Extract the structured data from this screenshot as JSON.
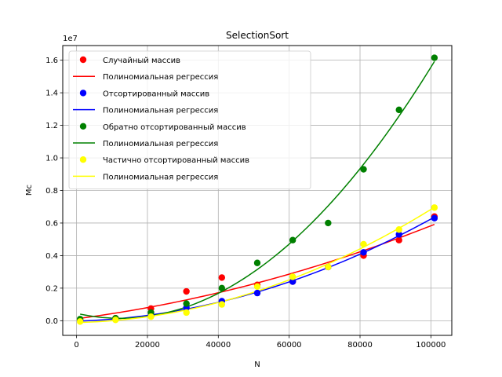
{
  "chart_data": {
    "type": "scatter",
    "title": "SelectionSort",
    "xlabel": "N",
    "ylabel": "Мс",
    "y_offset_text": "1e7",
    "xlim": [
      -3900,
      105900
    ],
    "ylim": [
      -900000,
      16900000
    ],
    "x_ticks": [
      0,
      20000,
      40000,
      60000,
      80000,
      100000
    ],
    "x_tick_labels": [
      "0",
      "20000",
      "40000",
      "60000",
      "80000",
      "100000"
    ],
    "y_ticks": [
      0,
      2000000,
      4000000,
      6000000,
      8000000,
      10000000,
      12000000,
      14000000,
      16000000
    ],
    "y_tick_labels": [
      "0.0",
      "0.2",
      "0.4",
      "0.6",
      "0.8",
      "1.0",
      "1.2",
      "1.4",
      "1.6"
    ],
    "grid": true,
    "legend_position": "top-left",
    "x": [
      1000,
      11000,
      21000,
      31000,
      41000,
      51000,
      61000,
      71000,
      81000,
      91000,
      101000
    ],
    "series": [
      {
        "name": "Случайный массив",
        "color": "#ff0000",
        "values": [
          50000,
          150000,
          750000,
          1800000,
          2650000,
          2200000,
          2400000,
          3300000,
          4000000,
          4950000,
          6400000
        ],
        "fit_name": "Полиномиальная регрессия",
        "fit_endpoints": [
          200000,
          5900000
        ]
      },
      {
        "name": "Отсортированный массив",
        "color": "#0000ff",
        "values": [
          0,
          100000,
          300000,
          800000,
          1200000,
          1700000,
          2400000,
          3300000,
          4200000,
          5300000,
          6300000
        ],
        "fit_name": "Полиномиальная регрессия",
        "fit_endpoints": [
          0,
          6400000
        ]
      },
      {
        "name": "Обратно отсортированный массив",
        "color": "#008000",
        "values": [
          100000,
          150000,
          500000,
          1050000,
          2000000,
          3550000,
          4950000,
          6000000,
          9300000,
          12950000,
          16150000
        ],
        "fit_name": "Полиномиальная регрессия",
        "fit_endpoints": [
          300000,
          16000000
        ]
      },
      {
        "name": "Частично отсортированный массив",
        "color": "#ffff00",
        "values": [
          -50000,
          50000,
          250000,
          500000,
          1000000,
          2100000,
          2700000,
          3300000,
          4700000,
          5600000,
          6950000
        ],
        "fit_name": "Полиномиальная регрессия",
        "fit_endpoints": [
          -50000,
          6900000
        ]
      }
    ]
  }
}
